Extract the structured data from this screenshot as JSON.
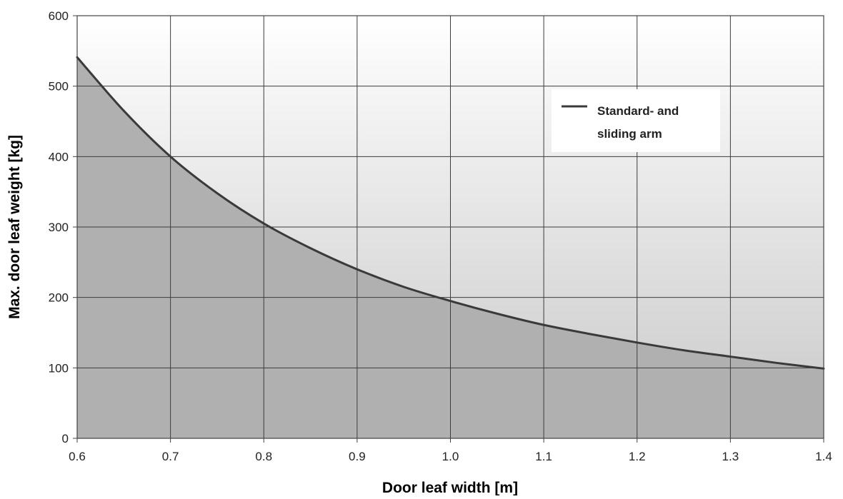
{
  "chart_data": {
    "type": "area",
    "title": "",
    "xlabel": "Door leaf width [m]",
    "ylabel": "Max. door leaf weight [kg]",
    "xlim": [
      0.6,
      1.4
    ],
    "ylim": [
      0,
      600
    ],
    "xticks": [
      "0.6",
      "0.7",
      "0.8",
      "0.9",
      "1.0",
      "1.1",
      "1.2",
      "1.3",
      "1.4"
    ],
    "yticks": [
      "0",
      "100",
      "200",
      "300",
      "400",
      "500",
      "600"
    ],
    "grid": true,
    "legend_position": "top-right",
    "series": [
      {
        "name": "Standard- and sliding arm",
        "line_color": "#3a3a3a",
        "fill_color": "#b0b0b0",
        "x": [
          0.6,
          0.65,
          0.7,
          0.75,
          0.8,
          0.85,
          0.9,
          0.95,
          1.0,
          1.05,
          1.1,
          1.15,
          1.2,
          1.25,
          1.3,
          1.35,
          1.4
        ],
        "y": [
          541,
          465,
          400,
          348,
          305,
          270,
          240,
          215,
          195,
          177,
          161,
          148,
          136,
          125,
          116,
          107,
          99
        ]
      }
    ]
  },
  "legend": {
    "lines": [
      "Standard- and",
      "sliding arm"
    ]
  }
}
